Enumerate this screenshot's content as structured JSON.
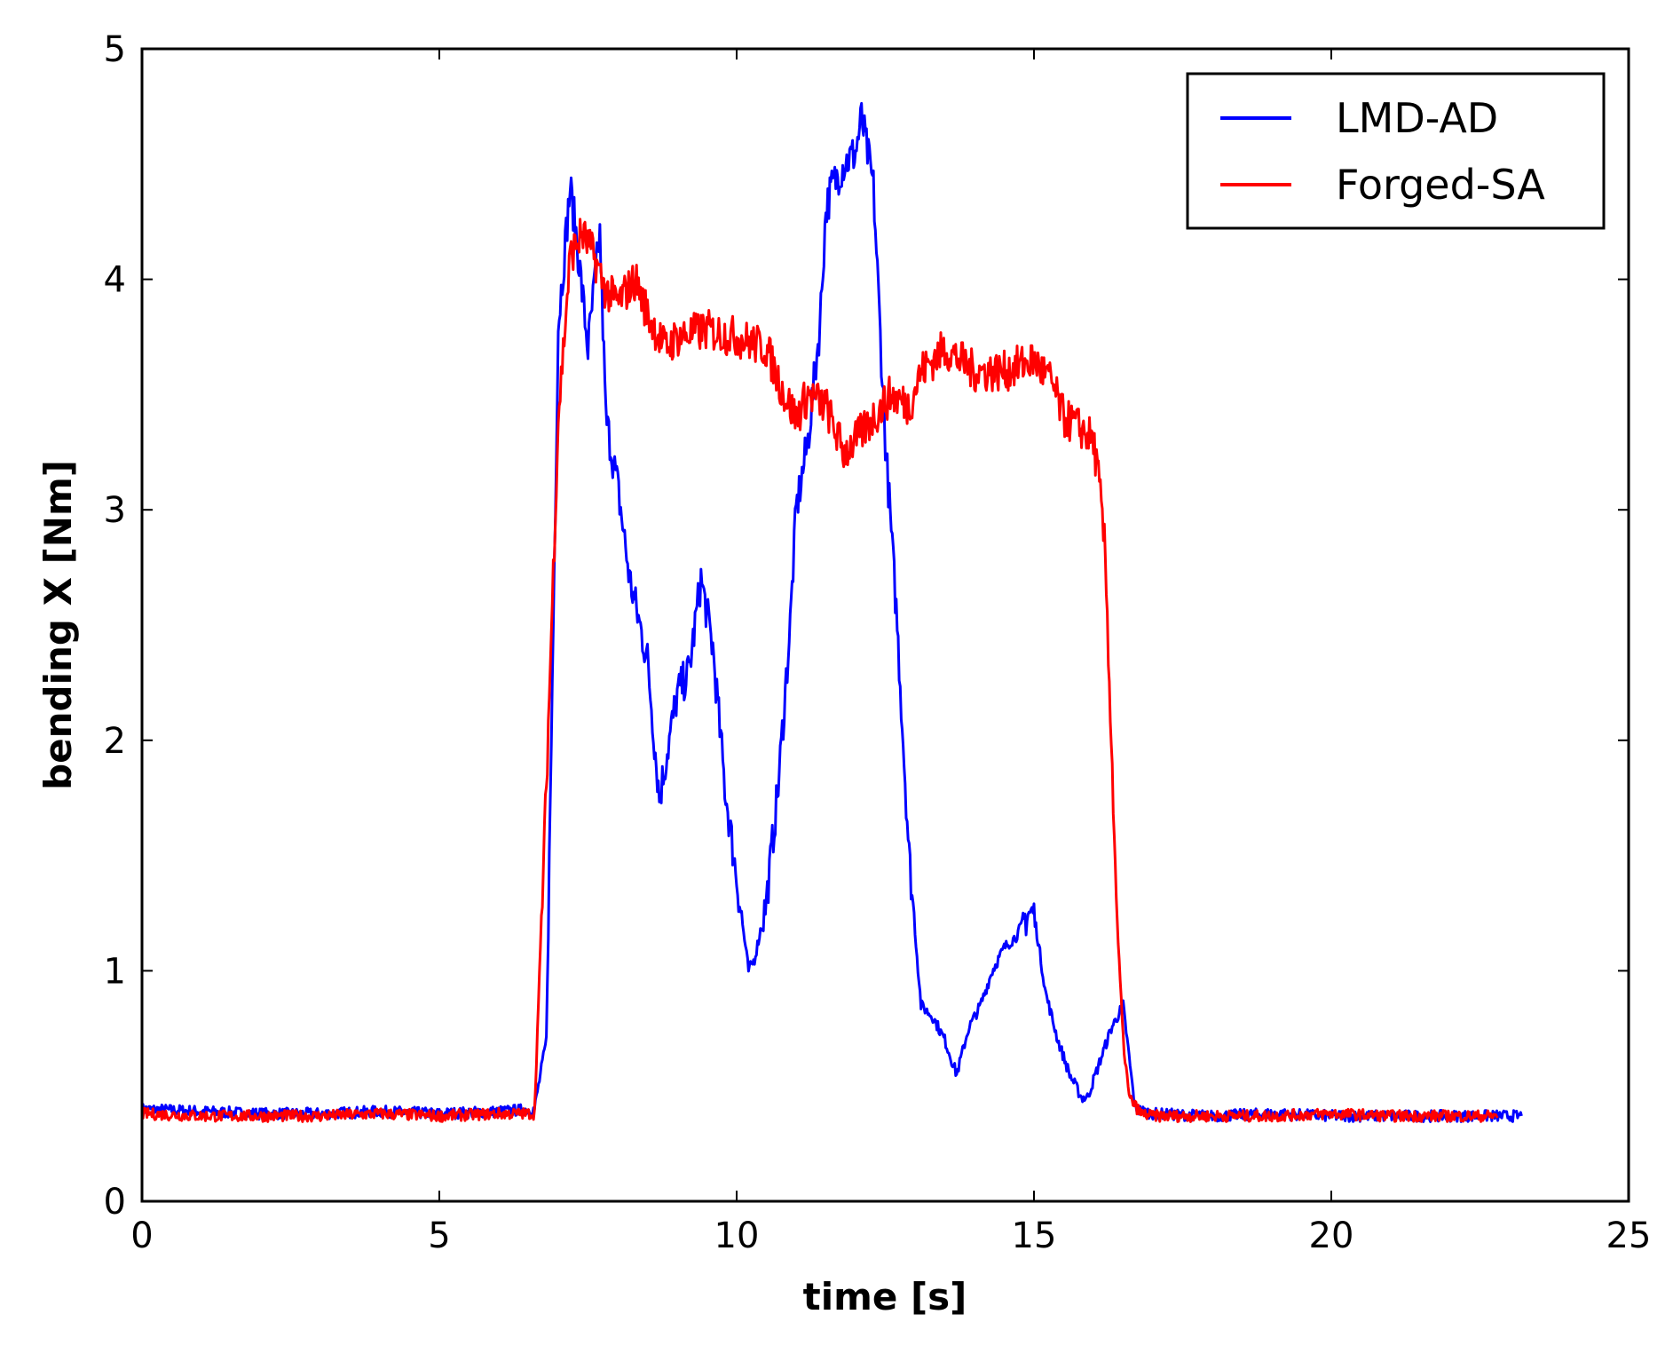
{
  "chart_data": {
    "type": "line",
    "title": "",
    "xlabel": "time [s]",
    "ylabel": "bending X [Nm]",
    "xlim": [
      0,
      25
    ],
    "ylim": [
      0,
      5
    ],
    "xticks": [
      0,
      5,
      10,
      15,
      20,
      25
    ],
    "yticks": [
      0,
      1,
      2,
      3,
      4,
      5
    ],
    "grid": false,
    "legend_position": "top-right",
    "series": [
      {
        "name": "LMD-AD",
        "color": "#0000ff",
        "x": [
          0.0,
          1.0,
          2.0,
          3.0,
          4.0,
          5.0,
          6.0,
          6.6,
          6.8,
          7.0,
          7.2,
          7.3,
          7.5,
          7.7,
          7.8,
          8.0,
          8.2,
          8.5,
          8.7,
          9.0,
          9.2,
          9.4,
          9.6,
          9.8,
          10.0,
          10.2,
          10.3,
          10.5,
          10.7,
          10.9,
          11.0,
          11.2,
          11.4,
          11.5,
          11.6,
          11.8,
          12.0,
          12.1,
          12.3,
          12.5,
          12.7,
          12.9,
          13.1,
          13.3,
          13.5,
          13.7,
          13.9,
          14.1,
          14.3,
          14.5,
          14.7,
          14.9,
          15.0,
          15.2,
          15.4,
          15.6,
          15.8,
          15.9,
          16.1,
          16.3,
          16.5,
          16.7,
          17.0,
          18.0,
          19.0,
          20.0,
          21.0,
          22.0,
          23.2
        ],
        "y": [
          0.4,
          0.39,
          0.38,
          0.38,
          0.39,
          0.38,
          0.39,
          0.4,
          0.7,
          3.8,
          4.4,
          4.2,
          3.7,
          4.2,
          3.4,
          3.1,
          2.7,
          2.35,
          1.75,
          2.2,
          2.3,
          2.7,
          2.4,
          1.8,
          1.4,
          1.0,
          1.05,
          1.3,
          1.8,
          2.5,
          3.0,
          3.3,
          3.8,
          4.3,
          4.4,
          4.5,
          4.55,
          4.7,
          4.4,
          3.3,
          2.5,
          1.5,
          0.85,
          0.8,
          0.7,
          0.55,
          0.75,
          0.85,
          1.0,
          1.1,
          1.15,
          1.25,
          1.25,
          0.9,
          0.7,
          0.55,
          0.45,
          0.45,
          0.6,
          0.75,
          0.85,
          0.4,
          0.38,
          0.37,
          0.38,
          0.37,
          0.37,
          0.37,
          0.37
        ]
      },
      {
        "name": "Forged-SA",
        "color": "#ff0000",
        "x": [
          0.0,
          1.0,
          2.0,
          3.0,
          4.0,
          5.0,
          6.0,
          6.6,
          6.8,
          7.0,
          7.2,
          7.4,
          7.6,
          7.8,
          8.0,
          8.3,
          8.5,
          8.8,
          9.0,
          9.5,
          10.0,
          10.5,
          10.8,
          11.0,
          11.2,
          11.5,
          11.8,
          12.0,
          12.3,
          12.6,
          12.9,
          13.1,
          13.5,
          14.0,
          14.5,
          15.0,
          15.3,
          15.5,
          15.8,
          16.0,
          16.1,
          16.2,
          16.3,
          16.4,
          16.5,
          16.6,
          16.8,
          17.0,
          18.0,
          19.0,
          20.0,
          21.0,
          22.0,
          22.8
        ],
        "y": [
          0.38,
          0.37,
          0.37,
          0.37,
          0.38,
          0.37,
          0.38,
          0.38,
          1.8,
          3.4,
          4.1,
          4.2,
          4.1,
          3.95,
          3.9,
          4.0,
          3.85,
          3.7,
          3.75,
          3.78,
          3.75,
          3.7,
          3.5,
          3.4,
          3.5,
          3.45,
          3.25,
          3.3,
          3.4,
          3.5,
          3.45,
          3.6,
          3.7,
          3.6,
          3.6,
          3.65,
          3.55,
          3.4,
          3.35,
          3.3,
          3.1,
          2.8,
          2.0,
          1.2,
          0.7,
          0.45,
          0.38,
          0.37,
          0.37,
          0.37,
          0.38,
          0.37,
          0.37,
          0.37
        ]
      }
    ]
  }
}
